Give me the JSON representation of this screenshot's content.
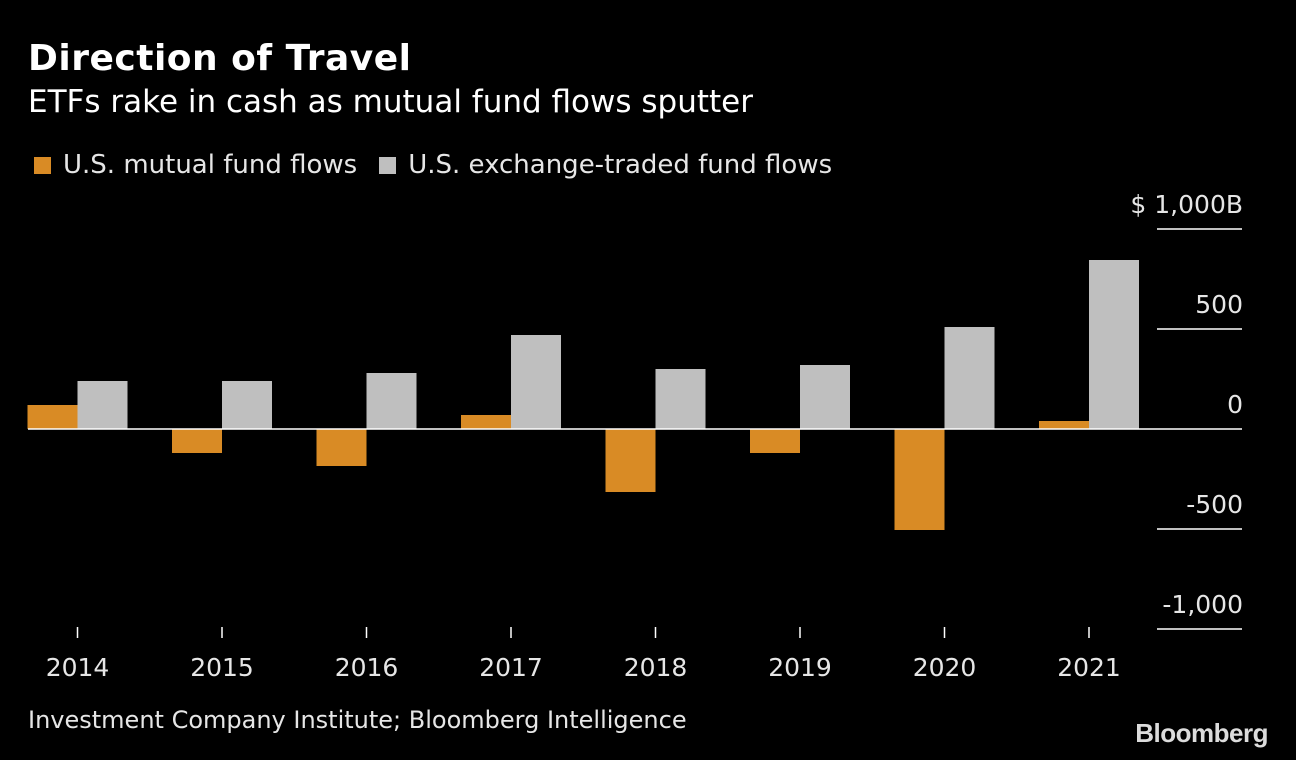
{
  "title": "Direction of Travel",
  "subtitle": "ETFs rake in cash as mutual fund flows sputter",
  "source": "Investment Company Institute; Bloomberg Intelligence",
  "brand": "Bloomberg",
  "colors": {
    "mutual": "#d98b25",
    "etf": "#bfbfbf",
    "background": "#000000",
    "gridline": "#ffffff"
  },
  "chart_data": {
    "type": "bar",
    "categories": [
      "2014",
      "2015",
      "2016",
      "2017",
      "2018",
      "2019",
      "2020",
      "2021"
    ],
    "series": [
      {
        "name": "U.S. mutual fund flows",
        "color": "#d98b25",
        "values": [
          120,
          -120,
          -185,
          70,
          -315,
          -120,
          -505,
          40
        ]
      },
      {
        "name": "U.S. exchange-traded fund flows",
        "color": "#bfbfbf",
        "values": [
          240,
          240,
          280,
          470,
          300,
          320,
          510,
          845
        ]
      }
    ],
    "yticks": [
      {
        "value": 1000,
        "label": "$ 1,000B"
      },
      {
        "value": 500,
        "label": "500"
      },
      {
        "value": 0,
        "label": "0"
      },
      {
        "value": -500,
        "label": "-500"
      },
      {
        "value": -1000,
        "label": "-1,000"
      }
    ],
    "ylim": [
      -1000,
      1000
    ],
    "ylabel": "",
    "xlabel": "",
    "legend_position": "top-left",
    "grid": false
  }
}
